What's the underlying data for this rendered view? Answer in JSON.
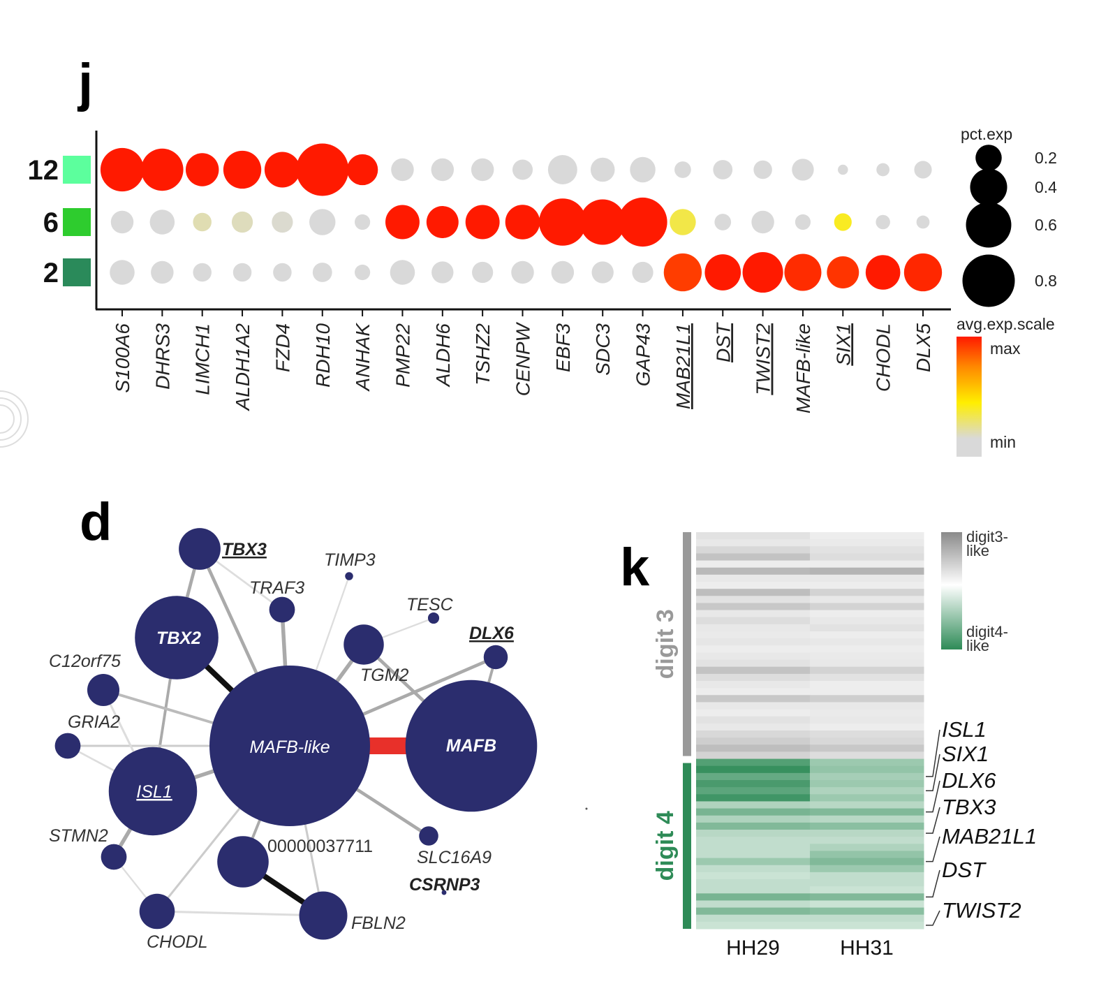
{
  "panels": {
    "j": "j",
    "d": "d",
    "k": "k"
  },
  "chart_data": [
    {
      "panel": "j",
      "type": "scatter",
      "subtype": "dot-plot",
      "rows": [
        {
          "label": "12",
          "color": "#5cff9d"
        },
        {
          "label": "6",
          "color": "#2ecc2e"
        },
        {
          "label": "2",
          "color": "#2a8a5a"
        }
      ],
      "genes": [
        {
          "name": "S100A6",
          "underline": false
        },
        {
          "name": "DHRS3",
          "underline": false
        },
        {
          "name": "LIMCH1",
          "underline": false
        },
        {
          "name": "ALDH1A2",
          "underline": false
        },
        {
          "name": "FZD4",
          "underline": false
        },
        {
          "name": "RDH10",
          "underline": false
        },
        {
          "name": "ANHAK",
          "underline": false
        },
        {
          "name": "PMP22",
          "underline": false
        },
        {
          "name": "ALDH6",
          "underline": false
        },
        {
          "name": "TSHZ2",
          "underline": false
        },
        {
          "name": "CENPW",
          "underline": false
        },
        {
          "name": "EBF3",
          "underline": false
        },
        {
          "name": "SDC3",
          "underline": false
        },
        {
          "name": "GAP43",
          "underline": false
        },
        {
          "name": "MAB21L1",
          "underline": true
        },
        {
          "name": "DST",
          "underline": true
        },
        {
          "name": "TWIST2",
          "underline": true
        },
        {
          "name": "MAFB-like",
          "underline": false
        },
        {
          "name": "SIX1",
          "underline": true
        },
        {
          "name": "CHODL",
          "underline": false
        },
        {
          "name": "DLX5",
          "underline": false
        }
      ],
      "pct_exp": [
        [
          0.55,
          0.52,
          0.32,
          0.42,
          0.37,
          0.8,
          0.28,
          0.15,
          0.15,
          0.15,
          0.12,
          0.25,
          0.17,
          0.19,
          0.08,
          0.11,
          0.1,
          0.14,
          0.03,
          0.05,
          0.09
        ],
        [
          0.15,
          0.18,
          0.1,
          0.13,
          0.13,
          0.2,
          0.07,
          0.34,
          0.3,
          0.34,
          0.35,
          0.65,
          0.6,
          0.7,
          0.2,
          0.08,
          0.15,
          0.07,
          0.09,
          0.06,
          0.05
        ],
        [
          0.18,
          0.15,
          0.1,
          0.1,
          0.1,
          0.11,
          0.07,
          0.18,
          0.14,
          0.13,
          0.15,
          0.15,
          0.14,
          0.13,
          0.42,
          0.38,
          0.48,
          0.4,
          0.3,
          0.35,
          0.42
        ]
      ],
      "avg_exp_scaled": [
        [
          1.0,
          1.0,
          1.0,
          1.0,
          1.0,
          1.0,
          1.0,
          0.0,
          0.0,
          0.0,
          0.0,
          0.0,
          0.0,
          0.0,
          0.0,
          0.0,
          0.0,
          0.0,
          0.0,
          0.0,
          0.0
        ],
        [
          0.0,
          0.0,
          0.08,
          0.06,
          0.02,
          0.0,
          0.0,
          1.0,
          1.0,
          1.0,
          1.0,
          1.0,
          1.0,
          1.0,
          0.3,
          0.0,
          0.0,
          0.0,
          0.38,
          0.0,
          0.0
        ],
        [
          0.0,
          0.0,
          0.0,
          0.0,
          0.0,
          0.0,
          0.0,
          0.0,
          0.0,
          0.0,
          0.0,
          0.0,
          0.0,
          0.0,
          0.92,
          1.0,
          1.0,
          0.96,
          0.94,
          1.0,
          0.97
        ]
      ],
      "size_legend": {
        "title": "pct.exp",
        "values": [
          0.2,
          0.4,
          0.6,
          0.8
        ],
        "labels": [
          "0.2",
          "0.4",
          "0.6",
          "0.8"
        ]
      },
      "color_legend": {
        "title": "avg.exp.scale",
        "max_label": "max",
        "min_label": "min",
        "colors": [
          "#ff1a00",
          "#ff8800",
          "#ffee00",
          "#d9d9d9"
        ]
      }
    },
    {
      "panel": "d",
      "type": "network",
      "nodes": [
        {
          "label": "MAFB-like",
          "size": 1.0,
          "style": "white"
        },
        {
          "label": "MAFB",
          "size": 0.82,
          "style": "white-bold"
        },
        {
          "label": "TBX2",
          "size": 0.52,
          "style": "white-bold"
        },
        {
          "label": "ISL1",
          "size": 0.55,
          "style": "white-underline"
        },
        {
          "label": "TBX3",
          "size": 0.26,
          "style": "bold-underline"
        },
        {
          "label": "TIMP3",
          "size": 0.05,
          "style": "italic"
        },
        {
          "label": "TRAF3",
          "size": 0.16,
          "style": "italic"
        },
        {
          "label": "TESC",
          "size": 0.07,
          "style": "italic"
        },
        {
          "label": "TGM2",
          "size": 0.25,
          "style": "italic"
        },
        {
          "label": "DLX6",
          "size": 0.15,
          "style": "bold-underline"
        },
        {
          "label": "C12orf75",
          "size": 0.2,
          "style": "italic"
        },
        {
          "label": "GRIA2",
          "size": 0.16,
          "style": "italic"
        },
        {
          "label": "STMN2",
          "size": 0.16,
          "style": "italic"
        },
        {
          "label": "00000037711",
          "size": 0.32,
          "style": "plain"
        },
        {
          "label": "SLC16A9",
          "size": 0.12,
          "style": "italic"
        },
        {
          "label": "CSRNP3",
          "size": 0.03,
          "style": "bold"
        },
        {
          "label": "CHODL",
          "size": 0.22,
          "style": "italic"
        },
        {
          "label": "FBLN2",
          "size": 0.3,
          "style": "italic"
        }
      ],
      "edges": [
        {
          "source": "MAFB-like",
          "target": "MAFB",
          "weight": 1.0,
          "color": "#e8302a"
        },
        {
          "source": "MAFB-like",
          "target": "TBX2",
          "weight": 0.8,
          "color": "#111111"
        },
        {
          "source": "00000037711",
          "target": "FBLN2",
          "weight": 0.8,
          "color": "#111111"
        },
        {
          "source": "MAFB-like",
          "target": "ISL1",
          "weight": 0.5,
          "color": "#aaaaaa"
        },
        {
          "source": "MAFB-like",
          "target": "TGM2",
          "weight": 0.5,
          "color": "#aaaaaa"
        },
        {
          "source": "MAFB-like",
          "target": "TRAF3",
          "weight": 0.5,
          "color": "#aaaaaa"
        },
        {
          "source": "MAFB-like",
          "target": "TBX3",
          "weight": 0.4,
          "color": "#aaaaaa"
        },
        {
          "source": "MAFB-like",
          "target": "DLX6",
          "weight": 0.4,
          "color": "#aaaaaa"
        },
        {
          "source": "MAFB-like",
          "target": "SLC16A9",
          "weight": 0.4,
          "color": "#aaaaaa"
        },
        {
          "source": "TBX2",
          "target": "TBX3",
          "weight": 0.4,
          "color": "#aaaaaa"
        },
        {
          "source": "ISL1",
          "target": "STMN2",
          "weight": 0.5,
          "color": "#aaaaaa"
        },
        {
          "source": "TGM2",
          "target": "MAFB",
          "weight": 0.4,
          "color": "#aaaaaa"
        },
        {
          "source": "DLX6",
          "target": "MAFB",
          "weight": 0.3,
          "color": "#aaaaaa"
        },
        {
          "source": "MAFB-like",
          "target": "00000037711",
          "weight": 0.3,
          "color": "#aaaaaa"
        },
        {
          "source": "TBX2",
          "target": "ISL1",
          "weight": 0.3,
          "color": "#aaaaaa"
        },
        {
          "source": "C12orf75",
          "target": "MAFB-like",
          "weight": 0.3,
          "color": "#bbbbbb"
        },
        {
          "source": "GRIA2",
          "target": "MAFB-like",
          "weight": 0.2,
          "color": "#cccccc"
        },
        {
          "source": "CHODL",
          "target": "MAFB-like",
          "weight": 0.2,
          "color": "#cccccc"
        },
        {
          "source": "FBLN2",
          "target": "MAFB-like",
          "weight": 0.2,
          "color": "#cccccc"
        },
        {
          "source": "TIMP3",
          "target": "MAFB-like",
          "weight": 0.1,
          "color": "#dddddd"
        },
        {
          "source": "TESC",
          "target": "TGM2",
          "weight": 0.1,
          "color": "#dddddd"
        },
        {
          "source": "STMN2",
          "target": "CHODL",
          "weight": 0.1,
          "color": "#dddddd"
        },
        {
          "source": "CHODL",
          "target": "FBLN2",
          "weight": 0.2,
          "color": "#dddddd"
        },
        {
          "source": "C12orf75",
          "target": "ISL1",
          "weight": 0.2,
          "color": "#dddddd"
        },
        {
          "source": "GRIA2",
          "target": "ISL1",
          "weight": 0.15,
          "color": "#dddddd"
        },
        {
          "source": "TBX3",
          "target": "TRAF3",
          "weight": 0.15,
          "color": "#dddddd"
        }
      ],
      "node_color": "#2b2d6e"
    },
    {
      "panel": "k",
      "type": "heatmap",
      "columns": [
        "HH29",
        "HH31"
      ],
      "groups": [
        {
          "label": "digit 3",
          "color": "#999999",
          "rows": 32
        },
        {
          "label": "digit 4",
          "color": "#2e8b57",
          "rows": 24
        }
      ],
      "values": [
        [
          0.15,
          0.05
        ],
        [
          0.1,
          0.08
        ],
        [
          0.25,
          0.15
        ],
        [
          0.45,
          0.2
        ],
        [
          0.05,
          0.05
        ],
        [
          0.55,
          0.6
        ],
        [
          0.1,
          0.1
        ],
        [
          0.05,
          0.05
        ],
        [
          0.5,
          0.3
        ],
        [
          0.15,
          0.1
        ],
        [
          0.4,
          0.3
        ],
        [
          0.1,
          0.05
        ],
        [
          0.2,
          0.1
        ],
        [
          0.1,
          0.15
        ],
        [
          0.08,
          0.05
        ],
        [
          0.12,
          0.1
        ],
        [
          0.05,
          0.05
        ],
        [
          0.1,
          0.08
        ],
        [
          0.15,
          0.1
        ],
        [
          0.45,
          0.3
        ],
        [
          0.2,
          0.15
        ],
        [
          0.1,
          0.05
        ],
        [
          0.05,
          0.05
        ],
        [
          0.4,
          0.35
        ],
        [
          0.1,
          0.1
        ],
        [
          0.05,
          0.08
        ],
        [
          0.15,
          0.1
        ],
        [
          0.1,
          0.05
        ],
        [
          0.25,
          0.2
        ],
        [
          0.35,
          0.25
        ],
        [
          0.5,
          0.4
        ],
        [
          0.3,
          0.2
        ],
        [
          -0.8,
          -0.4
        ],
        [
          -0.95,
          -0.45
        ],
        [
          -0.7,
          -0.35
        ],
        [
          -0.85,
          -0.4
        ],
        [
          -0.75,
          -0.3
        ],
        [
          -0.9,
          -0.4
        ],
        [
          -0.3,
          -0.25
        ],
        [
          -0.6,
          -0.55
        ],
        [
          -0.3,
          -0.25
        ],
        [
          -0.55,
          -0.5
        ],
        [
          -0.25,
          -0.25
        ],
        [
          -0.2,
          -0.2
        ],
        [
          -0.2,
          -0.3
        ],
        [
          -0.2,
          -0.45
        ],
        [
          -0.4,
          -0.55
        ],
        [
          -0.2,
          -0.4
        ],
        [
          -0.15,
          -0.2
        ],
        [
          -0.2,
          -0.2
        ],
        [
          -0.2,
          -0.15
        ],
        [
          -0.6,
          -0.55
        ],
        [
          -0.2,
          -0.15
        ],
        [
          -0.55,
          -0.5
        ],
        [
          -0.2,
          -0.2
        ],
        [
          -0.15,
          -0.15
        ]
      ],
      "gene_labels": [
        "ISL1",
        "SIX1",
        "DLX6",
        "TBX3",
        "MAB21L1",
        "DST",
        "TWIST2"
      ],
      "gene_label_rows": [
        34,
        36,
        39,
        42,
        46,
        51,
        55
      ],
      "legend": {
        "top_label": "digit3-\nlike",
        "bottom_label": "digit4-\nlike",
        "top_color": "#8a8a8a",
        "mid_color": "#ffffff",
        "bottom_color": "#2e8b57"
      }
    }
  ]
}
